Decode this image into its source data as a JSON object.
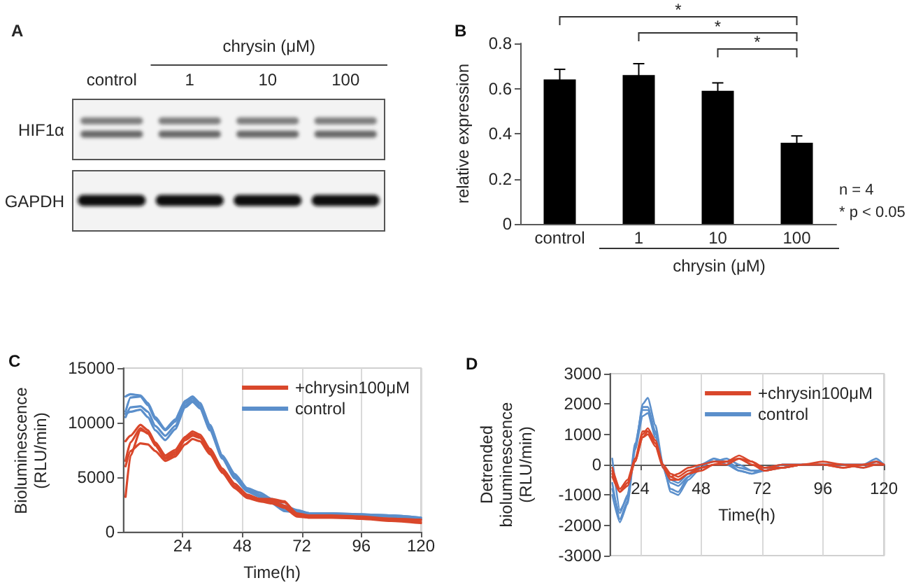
{
  "chart_data": [
    {
      "type": "other",
      "title": "A",
      "categories": [
        "control",
        "1",
        "10",
        "100"
      ],
      "xlabel": "chrysin (μM)",
      "y_categories": [
        "HIF1α",
        "GAPDH"
      ]
    },
    {
      "type": "bar",
      "title": "B",
      "categories": [
        "control",
        "1",
        "10",
        "100"
      ],
      "values": [
        0.64,
        0.66,
        0.59,
        0.36
      ],
      "errors": [
        0.045,
        0.05,
        0.035,
        0.03
      ],
      "color": "#000000",
      "xlabel": "chrysin (μM)",
      "ylabel": "relative expression",
      "ylim": [
        0,
        0.8
      ],
      "yticks": [
        0,
        0.2,
        0.4,
        0.6,
        0.8
      ],
      "annotations": [
        "*",
        "*",
        "*",
        "n = 4",
        "* p < 0.05"
      ]
    },
    {
      "type": "line",
      "title": "C",
      "xlabel": "Time(h)",
      "ylabel": "Bioluminescence (RLU/min)",
      "xlim": [
        0,
        120
      ],
      "xticks": [
        24,
        48,
        72,
        96,
        120
      ],
      "ylim": [
        0,
        15000
      ],
      "yticks": [
        0,
        5000,
        10000,
        15000
      ],
      "grid": "x",
      "legend": "top right",
      "marker": "none",
      "x": [
        1,
        3,
        7,
        10,
        13,
        17,
        21,
        25,
        28,
        31,
        35,
        40,
        45,
        50,
        55,
        60,
        65,
        70,
        75,
        84,
        96,
        108,
        120
      ],
      "series": [
        {
          "name": "+chrysin100μM",
          "color": "#d9472b",
          "values": [
            8300,
            8800,
            9800,
            9300,
            8200,
            7000,
            7500,
            8700,
            9200,
            8900,
            7600,
            5800,
            4400,
            3400,
            3000,
            2900,
            2700,
            1700,
            1500,
            1500,
            1400,
            1200,
            1100
          ]
        },
        {
          "color": "#d9472b",
          "values": [
            6500,
            8200,
            9500,
            9000,
            8000,
            6800,
            7300,
            8600,
            9000,
            8700,
            7400,
            5600,
            4200,
            3300,
            3000,
            3000,
            2800,
            1600,
            1400,
            1400,
            1300,
            1100,
            900
          ]
        },
        {
          "color": "#d9472b",
          "values": [
            3200,
            7000,
            9300,
            9100,
            7900,
            6700,
            7100,
            8400,
            8800,
            8600,
            7300,
            5500,
            4100,
            3200,
            2900,
            2800,
            2400,
            1500,
            1300,
            1300,
            1200,
            1000,
            800
          ]
        },
        {
          "color": "#d9472b",
          "values": [
            6000,
            7400,
            8100,
            8000,
            7400,
            6500,
            6900,
            8000,
            8500,
            8300,
            7100,
            5400,
            4000,
            3100,
            2800,
            2600,
            2200,
            1400,
            1300,
            1300,
            1300,
            1200,
            1100
          ]
        },
        {
          "name": "control",
          "color": "#5b8fcb",
          "values": [
            12400,
            12600,
            12500,
            11800,
            10500,
            9400,
            10300,
            12000,
            12400,
            11800,
            9800,
            7000,
            5300,
            4000,
            3600,
            3000,
            2400,
            2000,
            1700,
            1700,
            1600,
            1500,
            1300
          ]
        },
        {
          "color": "#5b8fcb",
          "values": [
            11000,
            12300,
            12400,
            11600,
            10300,
            9300,
            10100,
            11800,
            12200,
            11600,
            9600,
            6900,
            5100,
            3900,
            3400,
            2800,
            2200,
            1900,
            1700,
            1600,
            1600,
            1400,
            1200
          ]
        },
        {
          "color": "#5b8fcb",
          "values": [
            10500,
            11400,
            11500,
            11000,
            9700,
            8800,
            9700,
            11600,
            12000,
            11400,
            9400,
            6800,
            5000,
            3800,
            3300,
            2700,
            2000,
            1800,
            1600,
            1600,
            1500,
            1400,
            1200
          ]
        },
        {
          "color": "#5b8fcb",
          "values": [
            10800,
            11000,
            11200,
            10500,
            9300,
            8400,
            9400,
            11400,
            11900,
            11300,
            9300,
            6700,
            4900,
            3700,
            3200,
            2600,
            1900,
            1800,
            1600,
            1700,
            1600,
            1500,
            1300
          ]
        }
      ]
    },
    {
      "type": "line",
      "title": "D",
      "xlabel": "Time(h)",
      "ylabel": "Detrended bioluminescence (RLU/min)",
      "xlim": [
        12,
        120
      ],
      "xticks": [
        24,
        48,
        72,
        96,
        120
      ],
      "ylim": [
        -3000,
        3000
      ],
      "yticks": [
        -3000,
        -2000,
        -1000,
        0,
        1000,
        2000,
        3000
      ],
      "grid": "x",
      "legend": "top right",
      "marker": "none",
      "x": [
        13,
        16,
        19,
        22,
        25,
        27,
        30,
        33,
        36,
        39,
        43,
        48,
        53,
        58,
        63,
        68,
        73,
        80,
        88,
        96,
        104,
        112,
        117,
        120
      ],
      "series": [
        {
          "name": "+chrysin100μM",
          "color": "#d9472b",
          "values": [
            -300,
            -900,
            -700,
            100,
            1000,
            1200,
            800,
            0,
            -400,
            -300,
            -100,
            0,
            100,
            100,
            300,
            100,
            -200,
            -100,
            0,
            100,
            0,
            0,
            100,
            0
          ]
        },
        {
          "color": "#d9472b",
          "values": [
            -200,
            -900,
            -600,
            200,
            1100,
            1100,
            700,
            0,
            -400,
            -500,
            -300,
            -100,
            0,
            100,
            200,
            0,
            -200,
            -100,
            0,
            0,
            -100,
            0,
            0,
            0
          ]
        },
        {
          "color": "#d9472b",
          "values": [
            -100,
            -800,
            -500,
            200,
            900,
            1000,
            600,
            -100,
            -500,
            -500,
            -300,
            -200,
            0,
            0,
            200,
            0,
            -100,
            0,
            0,
            0,
            0,
            -100,
            0,
            0
          ]
        },
        {
          "color": "#d9472b",
          "values": [
            -400,
            -900,
            -600,
            100,
            900,
            1100,
            700,
            0,
            -300,
            -400,
            -200,
            -100,
            0,
            100,
            200,
            100,
            -100,
            -100,
            0,
            0,
            -100,
            0,
            0,
            0
          ]
        },
        {
          "name": "control",
          "color": "#5b8fcb",
          "values": [
            -1000,
            -1900,
            -1300,
            500,
            2000,
            2200,
            1300,
            0,
            -900,
            -1000,
            -500,
            -100,
            200,
            100,
            -200,
            -300,
            -200,
            -100,
            0,
            0,
            0,
            -100,
            100,
            0
          ]
        },
        {
          "color": "#5b8fcb",
          "values": [
            -600,
            -1800,
            -1200,
            600,
            1900,
            1900,
            1100,
            -100,
            -800,
            -900,
            -400,
            0,
            100,
            100,
            -100,
            -200,
            -200,
            0,
            0,
            0,
            0,
            0,
            200,
            0
          ]
        },
        {
          "color": "#5b8fcb",
          "values": [
            200,
            -1500,
            -1100,
            700,
            1800,
            1800,
            1000,
            -100,
            -600,
            -700,
            -400,
            0,
            200,
            0,
            -200,
            -300,
            -100,
            0,
            0,
            0,
            0,
            0,
            100,
            0
          ]
        },
        {
          "color": "#5b8fcb",
          "values": [
            -800,
            -1600,
            -1000,
            500,
            1600,
            1700,
            900,
            -100,
            -500,
            -600,
            -300,
            0,
            100,
            200,
            0,
            -200,
            -200,
            0,
            0,
            0,
            0,
            0,
            0,
            0
          ]
        }
      ]
    }
  ]
}
